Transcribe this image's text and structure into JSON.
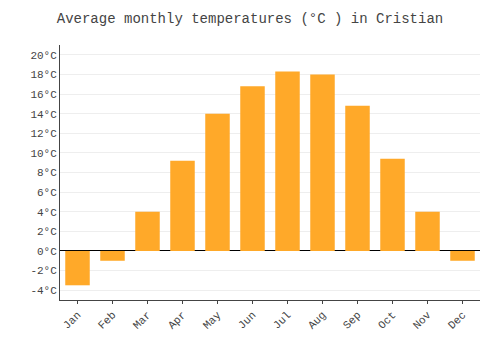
{
  "chart_data": {
    "type": "bar",
    "title": "Average monthly temperatures (°C ) in Cristian",
    "categories": [
      "Jan",
      "Feb",
      "Mar",
      "Apr",
      "May",
      "Jun",
      "Jul",
      "Aug",
      "Sep",
      "Oct",
      "Nov",
      "Dec"
    ],
    "values": [
      -3.5,
      -1.0,
      4.0,
      9.2,
      14.0,
      16.8,
      18.3,
      18.0,
      14.8,
      9.4,
      4.0,
      -1.0
    ],
    "color": "#FFA929",
    "ylim": [
      -5,
      21
    ],
    "yticks": [
      {
        "value": -4,
        "label": "-4°C"
      },
      {
        "value": -2,
        "label": "-2°C"
      },
      {
        "value": 0,
        "label": "0°C"
      },
      {
        "value": 2,
        "label": "2°C"
      },
      {
        "value": 4,
        "label": "4°C"
      },
      {
        "value": 6,
        "label": "6°C"
      },
      {
        "value": 8,
        "label": "8°C"
      },
      {
        "value": 10,
        "label": "10°C"
      },
      {
        "value": 12,
        "label": "12°C"
      },
      {
        "value": 14,
        "label": "14°C"
      },
      {
        "value": 16,
        "label": "16°C"
      },
      {
        "value": 18,
        "label": "18°C"
      },
      {
        "value": 20,
        "label": "20°C"
      }
    ],
    "grid": true
  }
}
